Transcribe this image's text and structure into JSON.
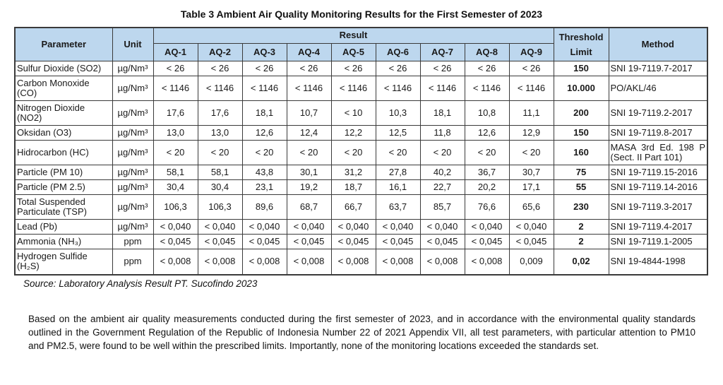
{
  "title": "Table 3 Ambient Air Quality Monitoring Results for the First Semester of 2023",
  "colors": {
    "header_fill": "#BDD7EE",
    "border": "#3A3A3A",
    "text": "#1A1A1A"
  },
  "table": {
    "headers": {
      "parameter": "Parameter",
      "unit": "Unit",
      "result": "Result",
      "stations": [
        "AQ-1",
        "AQ-2",
        "AQ-3",
        "AQ-4",
        "AQ-5",
        "AQ-6",
        "AQ-7",
        "AQ-8",
        "AQ-9"
      ],
      "threshold": "Threshold Limit",
      "method": "Method"
    },
    "rows": [
      {
        "parameter": "Sulfur Dioxide (SO2)",
        "unit": "µg/Nm³",
        "values": [
          "< 26",
          "< 26",
          "< 26",
          "< 26",
          "< 26",
          "< 26",
          "< 26",
          "< 26",
          "< 26"
        ],
        "threshold": "150",
        "method": "SNI 19-7119.7-2017"
      },
      {
        "parameter": "Carbon Monoxide (CO)",
        "unit": "µg/Nm³",
        "values": [
          "< 1146",
          "< 1146",
          "< 1146",
          "< 1146",
          "< 1146",
          "< 1146",
          "< 1146",
          "< 1146",
          "< 1146"
        ],
        "threshold": "10.000",
        "method": "PO/AKL/46"
      },
      {
        "parameter": "Nitrogen Dioxide (NO2)",
        "unit": "µg/Nm³",
        "values": [
          "17,6",
          "17,6",
          "18,1",
          "10,7",
          "< 10",
          "10,3",
          "18,1",
          "10,8",
          "11,1"
        ],
        "threshold": "200",
        "method": "SNI 19-7119.2-2017"
      },
      {
        "parameter": "Oksidan (O3)",
        "unit": "µg/Nm³",
        "values": [
          "13,0",
          "13,0",
          "12,6",
          "12,4",
          "12,2",
          "12,5",
          "11,8",
          "12,6",
          "12,9"
        ],
        "threshold": "150",
        "method": "SNI 19-7119.8-2017"
      },
      {
        "parameter": "Hidrocarbon (HC)",
        "unit": "µg/Nm³",
        "values": [
          "< 20",
          "< 20",
          "< 20",
          "< 20",
          "< 20",
          "< 20",
          "< 20",
          "< 20",
          "< 20"
        ],
        "threshold": "160",
        "method": "MASA 3rd Ed. 198 P (Sect. II Part 101)"
      },
      {
        "parameter": "Particle (PM 10)",
        "unit": "µg/Nm³",
        "values": [
          "58,1",
          "58,1",
          "43,8",
          "30,1",
          "31,2",
          "27,8",
          "40,2",
          "36,7",
          "30,7"
        ],
        "threshold": "75",
        "method": "SNI 19-7119.15-2016"
      },
      {
        "parameter": "Particle (PM 2.5)",
        "unit": "µg/Nm³",
        "values": [
          "30,4",
          "30,4",
          "23,1",
          "19,2",
          "18,7",
          "16,1",
          "22,7",
          "20,2",
          "17,1"
        ],
        "threshold": "55",
        "method": "SNI 19-7119.14-2016"
      },
      {
        "parameter": "Total Suspended Particulate (TSP)",
        "unit": "µg/Nm³",
        "values": [
          "106,3",
          "106,3",
          "89,6",
          "68,7",
          "66,7",
          "63,7",
          "85,7",
          "76,6",
          "65,6"
        ],
        "threshold": "230",
        "method": "SNI 19-7119.3-2017"
      },
      {
        "parameter": "Lead (Pb)",
        "unit": "µg/Nm³",
        "values": [
          "< 0,040",
          "< 0,040",
          "< 0,040",
          "< 0,040",
          "< 0,040",
          "< 0,040",
          "< 0,040",
          "< 0,040",
          "< 0,040"
        ],
        "threshold": "2",
        "method": "SNI 19-7119.4-2017"
      },
      {
        "parameter": "Ammonia (NH₃)",
        "unit": "ppm",
        "values": [
          "< 0,045",
          "< 0,045",
          "< 0,045",
          "< 0,045",
          "< 0,045",
          "< 0,045",
          "< 0,045",
          "< 0,045",
          "< 0,045"
        ],
        "threshold": "2",
        "method": "SNI 19-7119.1-2005"
      },
      {
        "parameter": "Hydrogen Sulfide (H₂S)",
        "unit": "ppm",
        "values": [
          "< 0,008",
          "< 0,008",
          "< 0,008",
          "< 0,008",
          "< 0,008",
          "< 0,008",
          "< 0,008",
          "< 0,008",
          "0,009"
        ],
        "threshold": "0,02",
        "method": "SNI 19-4844-1998"
      }
    ]
  },
  "source_note": "Source: Laboratory Analysis Result PT. Sucofindo 2023",
  "paragraph": "Based on the ambient air quality measurements conducted during the first semester of 2023, and in accordance with the environmental quality standards outlined in the Government Regulation of the Republic of Indonesia Number 22 of 2021 Appendix VII, all test parameters, with particular attention to PM10 and PM2.5, were found to be well within the prescribed limits. Importantly, none of the monitoring locations exceeded the standards set."
}
